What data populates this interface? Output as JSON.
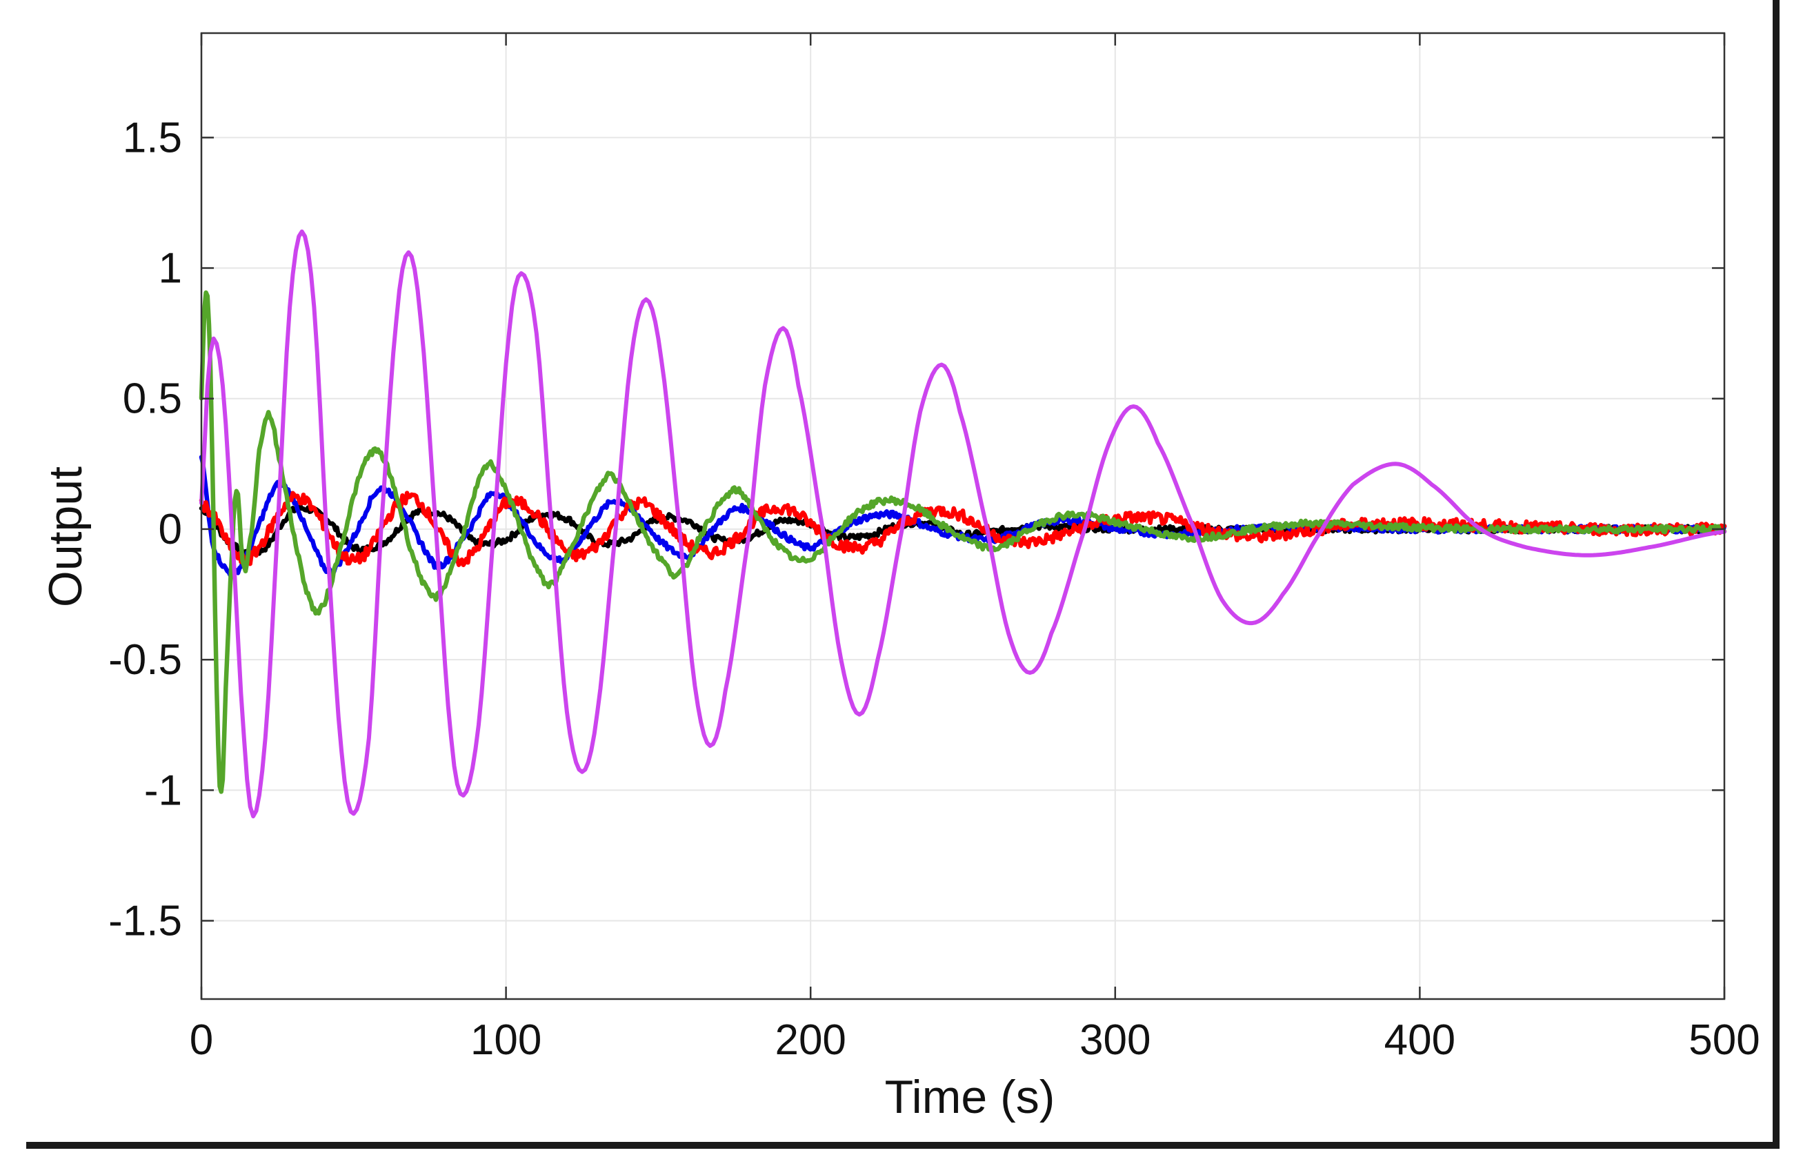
{
  "chart_data": {
    "type": "line",
    "title": "",
    "xlabel": "Time (s)",
    "ylabel": "Output",
    "xlim": [
      0,
      500
    ],
    "ylim": [
      -1.8,
      1.9
    ],
    "grid": true,
    "xticks": [
      0,
      100,
      200,
      300,
      400,
      500
    ],
    "xtick_labels": [
      "0",
      "100",
      "200",
      "300",
      "400",
      "500"
    ],
    "yticks": [
      1.5,
      1,
      0.5,
      0,
      -0.5,
      -1,
      -1.5
    ],
    "ytick_labels": [
      "1.5",
      "1",
      "0.5",
      "0",
      "-0.5",
      "-1",
      "-1.5"
    ],
    "series": [
      {
        "name": "black",
        "color": "#000000",
        "noise": 0.012,
        "points": [
          [
            0,
            0.08
          ],
          [
            10,
            -0.06
          ],
          [
            20,
            -0.08
          ],
          [
            30,
            0.07
          ],
          [
            40,
            0.05
          ],
          [
            50,
            -0.07
          ],
          [
            60,
            -0.05
          ],
          [
            70,
            0.06
          ],
          [
            80,
            0.05
          ],
          [
            90,
            -0.05
          ],
          [
            100,
            -0.04
          ],
          [
            110,
            0.05
          ],
          [
            120,
            0.04
          ],
          [
            130,
            -0.05
          ],
          [
            140,
            -0.04
          ],
          [
            150,
            0.04
          ],
          [
            160,
            0.03
          ],
          [
            170,
            -0.04
          ],
          [
            180,
            -0.03
          ],
          [
            190,
            0.03
          ],
          [
            200,
            0.02
          ],
          [
            210,
            -0.03
          ],
          [
            220,
            -0.02
          ],
          [
            230,
            0.02
          ],
          [
            240,
            0.02
          ],
          [
            250,
            -0.02
          ],
          [
            260,
            -0.01
          ],
          [
            270,
            0.01
          ],
          [
            280,
            0.01
          ],
          [
            300,
            0.0
          ],
          [
            350,
            0.0
          ],
          [
            400,
            0.0
          ],
          [
            450,
            0.0
          ],
          [
            500,
            0.0
          ]
        ]
      },
      {
        "name": "blue",
        "color": "#0000ee",
        "noise": 0.012,
        "points": [
          [
            0,
            0.28
          ],
          [
            3,
            0.0
          ],
          [
            5,
            -0.1
          ],
          [
            10,
            -0.17
          ],
          [
            15,
            -0.1
          ],
          [
            20,
            0.05
          ],
          [
            25,
            0.17
          ],
          [
            30,
            0.12
          ],
          [
            35,
            -0.02
          ],
          [
            42,
            -0.16
          ],
          [
            50,
            -0.03
          ],
          [
            58,
            0.15
          ],
          [
            65,
            0.1
          ],
          [
            72,
            -0.05
          ],
          [
            78,
            -0.14
          ],
          [
            88,
            0.0
          ],
          [
            96,
            0.14
          ],
          [
            104,
            0.05
          ],
          [
            112,
            -0.08
          ],
          [
            120,
            -0.11
          ],
          [
            128,
            0.02
          ],
          [
            136,
            0.11
          ],
          [
            144,
            0.04
          ],
          [
            152,
            -0.06
          ],
          [
            160,
            -0.1
          ],
          [
            168,
            0.0
          ],
          [
            176,
            0.08
          ],
          [
            184,
            0.04
          ],
          [
            192,
            -0.03
          ],
          [
            200,
            -0.07
          ],
          [
            210,
            0.0
          ],
          [
            220,
            0.05
          ],
          [
            230,
            0.05
          ],
          [
            240,
            0.0
          ],
          [
            250,
            -0.03
          ],
          [
            260,
            -0.04
          ],
          [
            270,
            0.0
          ],
          [
            280,
            0.03
          ],
          [
            290,
            0.03
          ],
          [
            300,
            0.0
          ],
          [
            320,
            -0.02
          ],
          [
            340,
            0.0
          ],
          [
            360,
            0.01
          ],
          [
            400,
            0.0
          ],
          [
            450,
            0.0
          ],
          [
            500,
            0.0
          ]
        ]
      },
      {
        "name": "red",
        "color": "#ff0000",
        "noise": 0.022,
        "points": [
          [
            0,
            0.1
          ],
          [
            5,
            0.03
          ],
          [
            10,
            -0.08
          ],
          [
            15,
            -0.12
          ],
          [
            20,
            -0.05
          ],
          [
            25,
            0.05
          ],
          [
            30,
            0.12
          ],
          [
            35,
            0.1
          ],
          [
            40,
            0.02
          ],
          [
            45,
            -0.08
          ],
          [
            50,
            -0.12
          ],
          [
            55,
            -0.08
          ],
          [
            60,
            0.02
          ],
          [
            65,
            0.1
          ],
          [
            70,
            0.12
          ],
          [
            75,
            0.05
          ],
          [
            80,
            -0.05
          ],
          [
            85,
            -0.12
          ],
          [
            90,
            -0.08
          ],
          [
            95,
            0.02
          ],
          [
            100,
            0.1
          ],
          [
            108,
            0.08
          ],
          [
            115,
            -0.02
          ],
          [
            122,
            -0.1
          ],
          [
            130,
            -0.06
          ],
          [
            138,
            0.06
          ],
          [
            145,
            0.1
          ],
          [
            152,
            0.03
          ],
          [
            160,
            -0.06
          ],
          [
            168,
            -0.09
          ],
          [
            176,
            -0.03
          ],
          [
            184,
            0.06
          ],
          [
            192,
            0.08
          ],
          [
            200,
            0.02
          ],
          [
            210,
            -0.06
          ],
          [
            220,
            -0.06
          ],
          [
            230,
            0.02
          ],
          [
            240,
            0.07
          ],
          [
            250,
            0.05
          ],
          [
            260,
            -0.02
          ],
          [
            270,
            -0.05
          ],
          [
            280,
            -0.03
          ],
          [
            290,
            0.01
          ],
          [
            300,
            0.04
          ],
          [
            315,
            0.04
          ],
          [
            330,
            0.0
          ],
          [
            345,
            -0.03
          ],
          [
            360,
            -0.01
          ],
          [
            380,
            0.02
          ],
          [
            400,
            0.02
          ],
          [
            430,
            0.01
          ],
          [
            460,
            0.0
          ],
          [
            500,
            0.0
          ]
        ]
      },
      {
        "name": "green",
        "color": "#55a62a",
        "noise": 0.012,
        "points": [
          [
            0,
            0.5
          ],
          [
            1,
            0.85
          ],
          [
            2,
            0.9
          ],
          [
            3,
            0.6
          ],
          [
            4,
            0.0
          ],
          [
            5,
            -0.6
          ],
          [
            6,
            -0.98
          ],
          [
            7,
            -0.95
          ],
          [
            8,
            -0.6
          ],
          [
            10,
            -0.1
          ],
          [
            11,
            0.12
          ],
          [
            12,
            0.13
          ],
          [
            13,
            -0.05
          ],
          [
            14,
            -0.15
          ],
          [
            15,
            -0.12
          ],
          [
            17,
            0.05
          ],
          [
            19,
            0.3
          ],
          [
            22,
            0.44
          ],
          [
            25,
            0.3
          ],
          [
            30,
            0.0
          ],
          [
            35,
            -0.25
          ],
          [
            39,
            -0.31
          ],
          [
            45,
            -0.1
          ],
          [
            52,
            0.2
          ],
          [
            57,
            0.3
          ],
          [
            62,
            0.2
          ],
          [
            70,
            -0.12
          ],
          [
            77,
            -0.26
          ],
          [
            85,
            -0.05
          ],
          [
            93,
            0.23
          ],
          [
            98,
            0.2
          ],
          [
            105,
            0.0
          ],
          [
            110,
            -0.15
          ],
          [
            115,
            -0.21
          ],
          [
            122,
            -0.05
          ],
          [
            132,
            0.18
          ],
          [
            136,
            0.19
          ],
          [
            145,
            0.0
          ],
          [
            152,
            -0.13
          ],
          [
            157,
            -0.17
          ],
          [
            165,
            0.0
          ],
          [
            172,
            0.12
          ],
          [
            177,
            0.14
          ],
          [
            185,
            0.0
          ],
          [
            193,
            -0.1
          ],
          [
            198,
            -0.12
          ],
          [
            205,
            -0.06
          ],
          [
            215,
            0.06
          ],
          [
            225,
            0.11
          ],
          [
            235,
            0.08
          ],
          [
            245,
            0.0
          ],
          [
            255,
            -0.06
          ],
          [
            262,
            -0.07
          ],
          [
            272,
            0.0
          ],
          [
            282,
            0.05
          ],
          [
            292,
            0.05
          ],
          [
            302,
            0.02
          ],
          [
            310,
            0.0
          ],
          [
            320,
            -0.03
          ],
          [
            330,
            -0.03
          ],
          [
            345,
            0.0
          ],
          [
            360,
            0.02
          ],
          [
            370,
            0.02
          ],
          [
            390,
            0.01
          ],
          [
            420,
            0.0
          ],
          [
            460,
            0.0
          ],
          [
            500,
            0.0
          ]
        ]
      },
      {
        "name": "magenta",
        "color": "#cc44ee",
        "noise": 0.0,
        "points": [
          [
            0,
            0.1
          ],
          [
            2,
            0.55
          ],
          [
            4,
            0.73
          ],
          [
            7,
            0.55
          ],
          [
            10,
            0.0
          ],
          [
            14,
            -0.8
          ],
          [
            17,
            -1.1
          ],
          [
            21,
            -0.8
          ],
          [
            25,
            0.0
          ],
          [
            29,
            0.85
          ],
          [
            33,
            1.14
          ],
          [
            37,
            0.85
          ],
          [
            41,
            0.0
          ],
          [
            46,
            -0.85
          ],
          [
            50,
            -1.09
          ],
          [
            55,
            -0.8
          ],
          [
            59,
            0.0
          ],
          [
            64,
            0.8
          ],
          [
            68,
            1.06
          ],
          [
            72,
            0.8
          ],
          [
            77,
            0.0
          ],
          [
            82,
            -0.8
          ],
          [
            86,
            -1.02
          ],
          [
            91,
            -0.75
          ],
          [
            96,
            0.0
          ],
          [
            101,
            0.75
          ],
          [
            105,
            0.98
          ],
          [
            110,
            0.75
          ],
          [
            115,
            0.0
          ],
          [
            120,
            -0.7
          ],
          [
            125,
            -0.93
          ],
          [
            130,
            -0.7
          ],
          [
            136,
            0.0
          ],
          [
            141,
            0.65
          ],
          [
            146,
            0.88
          ],
          [
            151,
            0.65
          ],
          [
            157,
            0.0
          ],
          [
            162,
            -0.6
          ],
          [
            167,
            -0.83
          ],
          [
            172,
            -0.62
          ],
          [
            180,
            0.0
          ],
          [
            185,
            0.55
          ],
          [
            191,
            0.77
          ],
          [
            196,
            0.55
          ],
          [
            204,
            0.0
          ],
          [
            210,
            -0.5
          ],
          [
            216,
            -0.71
          ],
          [
            222,
            -0.5
          ],
          [
            230,
            0.0
          ],
          [
            236,
            0.45
          ],
          [
            243,
            0.63
          ],
          [
            249,
            0.45
          ],
          [
            258,
            0.0
          ],
          [
            265,
            -0.4
          ],
          [
            272,
            -0.55
          ],
          [
            279,
            -0.4
          ],
          [
            290,
            0.0
          ],
          [
            298,
            0.33
          ],
          [
            306,
            0.47
          ],
          [
            314,
            0.33
          ],
          [
            326,
            0.0
          ],
          [
            335,
            -0.27
          ],
          [
            345,
            -0.36
          ],
          [
            355,
            -0.25
          ],
          [
            368,
            0.0
          ],
          [
            378,
            0.17
          ],
          [
            392,
            0.25
          ],
          [
            404,
            0.17
          ],
          [
            420,
            0.0
          ],
          [
            435,
            -0.07
          ],
          [
            455,
            -0.1
          ],
          [
            475,
            -0.07
          ],
          [
            500,
            -0.01
          ]
        ]
      }
    ]
  }
}
